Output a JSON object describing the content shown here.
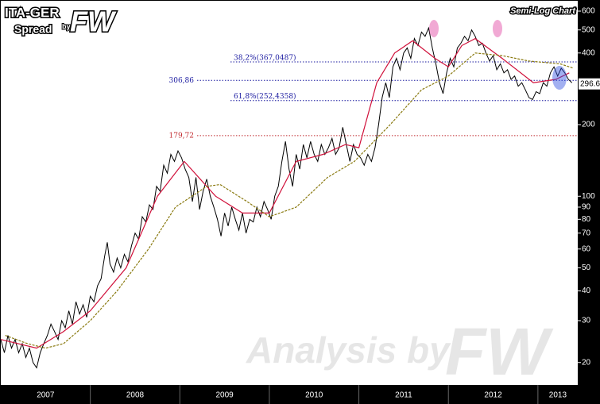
{
  "chart_data": {
    "type": "line",
    "title": "ITA-GER",
    "subtitle": "Spread",
    "logo_by": "by",
    "logo": "FW",
    "scale_label": "Semi-Log Chart",
    "watermark": "Analysis by",
    "watermark_logo": "FW",
    "log_scale": true,
    "xlim": [
      2007,
      2013.445
    ],
    "ylim": [
      16.1,
      663
    ],
    "xticks": [
      2008,
      2009,
      2010,
      2011,
      2012,
      2013
    ],
    "x_labels": [
      {
        "value": 2007,
        "label": "2007"
      },
      {
        "value": 2008,
        "label": "2008"
      },
      {
        "value": 2009,
        "label": "2009"
      },
      {
        "value": 2010,
        "label": "2010"
      },
      {
        "value": 2011,
        "label": "2011"
      },
      {
        "value": 2012,
        "label": "2012"
      },
      {
        "value": 2013,
        "label": "2013"
      }
    ],
    "yticks": [
      20,
      30,
      40,
      50,
      60,
      70,
      80,
      90,
      100,
      200,
      400,
      500,
      600
    ],
    "last_value": 296.6,
    "levels": [
      {
        "value": 367.0487,
        "label": "38,2%(367,0487)",
        "color": "#1a1aa0"
      },
      {
        "value": 306.86,
        "label": "306,86",
        "color": "#1a1aa0"
      },
      {
        "value": 252.4358,
        "label": "61,8%(252,4358)",
        "color": "#1a1aa0"
      },
      {
        "value": 179.72,
        "label": "179,72",
        "color": "#c0282c"
      }
    ],
    "series": [
      {
        "color": "#000000",
        "x": [
          2007.0,
          2007.04,
          2007.08,
          2007.12,
          2007.16,
          2007.2,
          2007.24,
          2007.28,
          2007.32,
          2007.36,
          2007.4,
          2007.44,
          2007.48,
          2007.52,
          2007.56,
          2007.6,
          2007.64,
          2007.68,
          2007.72,
          2007.76,
          2007.8,
          2007.84,
          2007.88,
          2007.92,
          2007.96,
          2008.0,
          2008.04,
          2008.08,
          2008.12,
          2008.16,
          2008.19,
          2008.22,
          2008.26,
          2008.3,
          2008.34,
          2008.38,
          2008.42,
          2008.46,
          2008.5,
          2008.54,
          2008.58,
          2008.62,
          2008.66,
          2008.7,
          2008.74,
          2008.78,
          2008.82,
          2008.86,
          2008.9,
          2008.94,
          2008.98,
          2009.02,
          2009.06,
          2009.1,
          2009.14,
          2009.18,
          2009.22,
          2009.26,
          2009.3,
          2009.34,
          2009.38,
          2009.42,
          2009.46,
          2009.5,
          2009.54,
          2009.58,
          2009.62,
          2009.66,
          2009.7,
          2009.74,
          2009.78,
          2009.82,
          2009.86,
          2009.9,
          2009.94,
          2009.98,
          2010.02,
          2010.06,
          2010.1,
          2010.14,
          2010.18,
          2010.22,
          2010.26,
          2010.3,
          2010.34,
          2010.38,
          2010.42,
          2010.46,
          2010.5,
          2010.54,
          2010.58,
          2010.62,
          2010.66,
          2010.7,
          2010.74,
          2010.78,
          2010.82,
          2010.86,
          2010.9,
          2010.94,
          2010.98,
          2011.02,
          2011.06,
          2011.1,
          2011.14,
          2011.18,
          2011.22,
          2011.26,
          2011.3,
          2011.34,
          2011.38,
          2011.42,
          2011.46,
          2011.5,
          2011.54,
          2011.58,
          2011.62,
          2011.66,
          2011.7,
          2011.74,
          2011.78,
          2011.82,
          2011.86,
          2011.9,
          2011.94,
          2011.98,
          2012.02,
          2012.06,
          2012.1,
          2012.14,
          2012.18,
          2012.22,
          2012.26,
          2012.3,
          2012.34,
          2012.38,
          2012.42,
          2012.46,
          2012.5,
          2012.54,
          2012.58,
          2012.62,
          2012.66,
          2012.7,
          2012.74,
          2012.78,
          2012.82,
          2012.86,
          2012.9,
          2012.94,
          2012.98,
          2013.02,
          2013.06,
          2013.1,
          2013.14,
          2013.18,
          2013.22,
          2013.26,
          2013.3,
          2013.34,
          2013.38
        ],
        "values": [
          25,
          22,
          26,
          23,
          25,
          22,
          24,
          21,
          23,
          20,
          19,
          22,
          24,
          26,
          29,
          27,
          25,
          30,
          28,
          33,
          29,
          36,
          32,
          35,
          31,
          38,
          36,
          42,
          45,
          56,
          64,
          52,
          48,
          55,
          50,
          57,
          53,
          62,
          70,
          66,
          82,
          78,
          92,
          88,
          110,
          105,
          135,
          125,
          150,
          140,
          155,
          145,
          130,
          120,
          95,
          120,
          88,
          105,
          118,
          100,
          90,
          80,
          68,
          85,
          75,
          90,
          80,
          72,
          85,
          70,
          80,
          78,
          90,
          82,
          95,
          88,
          80,
          100,
          110,
          140,
          170,
          130,
          110,
          150,
          130,
          165,
          145,
          170,
          150,
          140,
          165,
          150,
          160,
          175,
          150,
          160,
          195,
          165,
          140,
          165,
          150,
          145,
          135,
          150,
          140,
          160,
          200,
          260,
          300,
          260,
          350,
          380,
          340,
          400,
          420,
          380,
          460,
          430,
          490,
          470,
          510,
          420,
          360,
          300,
          270,
          330,
          380,
          350,
          420,
          440,
          470,
          450,
          500,
          470,
          430,
          440,
          400,
          370,
          390,
          340,
          360,
          330,
          340,
          310,
          320,
          290,
          300,
          280,
          260,
          255,
          275,
          270,
          300,
          290,
          330,
          350,
          320,
          345,
          330,
          310,
          300
        ]
      },
      {
        "color": "#d0103a",
        "x": [
          2007.0,
          2007.4,
          2007.7,
          2008.0,
          2008.4,
          2008.75,
          2009.05,
          2009.4,
          2009.7,
          2010.0,
          2010.3,
          2010.6,
          2010.85,
          2011.0,
          2011.2,
          2011.4,
          2011.6,
          2011.85,
          2012.0,
          2012.15,
          2012.3,
          2012.6,
          2012.95,
          2013.2,
          2013.35
        ],
        "values": [
          25,
          23,
          27,
          33,
          50,
          100,
          140,
          100,
          85,
          85,
          140,
          150,
          165,
          160,
          300,
          400,
          450,
          380,
          350,
          430,
          460,
          380,
          300,
          310,
          330
        ]
      },
      {
        "color": "#8a7a10",
        "x": [
          2007.05,
          2007.3,
          2007.5,
          2007.7,
          2008.0,
          2008.3,
          2008.65,
          2008.95,
          2009.3,
          2009.45,
          2009.75,
          2010.0,
          2010.3,
          2010.65,
          2010.95,
          2011.35,
          2011.7,
          2012.0,
          2012.3,
          2012.6,
          2012.9,
          2013.25,
          2013.4
        ],
        "values": [
          26,
          24,
          23,
          24,
          30,
          40,
          60,
          90,
          110,
          112,
          95,
          82,
          90,
          120,
          140,
          200,
          280,
          320,
          400,
          390,
          370,
          360,
          345
        ]
      }
    ]
  }
}
